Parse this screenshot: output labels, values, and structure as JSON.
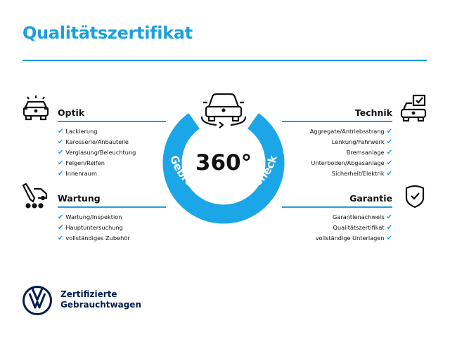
{
  "title": "Qualitätszertifikat",
  "colors": {
    "accent": "#1ba0dc",
    "ring": "#1ba6e8",
    "brand": "#001e50"
  },
  "badge": {
    "center_text": "360°",
    "ring_text": "Gebrauchtwagen-Check",
    "icon": "car-rotate-icon"
  },
  "sections": {
    "optik": {
      "heading": "Optik",
      "icon": "car-lights-icon",
      "items": [
        "Lackierung",
        "Karosserie/Anbauteile",
        "Verglasung/Beleuchtung",
        "Felgen/Reifen",
        "Innenraum"
      ]
    },
    "wartung": {
      "heading": "Wartung",
      "icon": "service-car-icon",
      "items": [
        "Wartung/Inspektion",
        "Hauptuntersuchung",
        "vollständiges Zubehör"
      ]
    },
    "technik": {
      "heading": "Technik",
      "icon": "car-checkbox-icon",
      "items": [
        "Aggregate/Antriebsstrang",
        "Lenkung/Fahrwerk",
        "Bremsanlage",
        "Unterboden/Abgasanlage",
        "Sicherheit/Elektrik"
      ]
    },
    "garantie": {
      "heading": "Garantie",
      "icon": "shield-check-icon",
      "items": [
        "Garantienachweis",
        "Qualitätszertifikat",
        "vollständige Unterlagen"
      ]
    }
  },
  "check_glyph": "✔",
  "brand": {
    "line1": "Zertifizierte",
    "line2": "Gebrauchtwagen",
    "logo": "vw-logo"
  }
}
